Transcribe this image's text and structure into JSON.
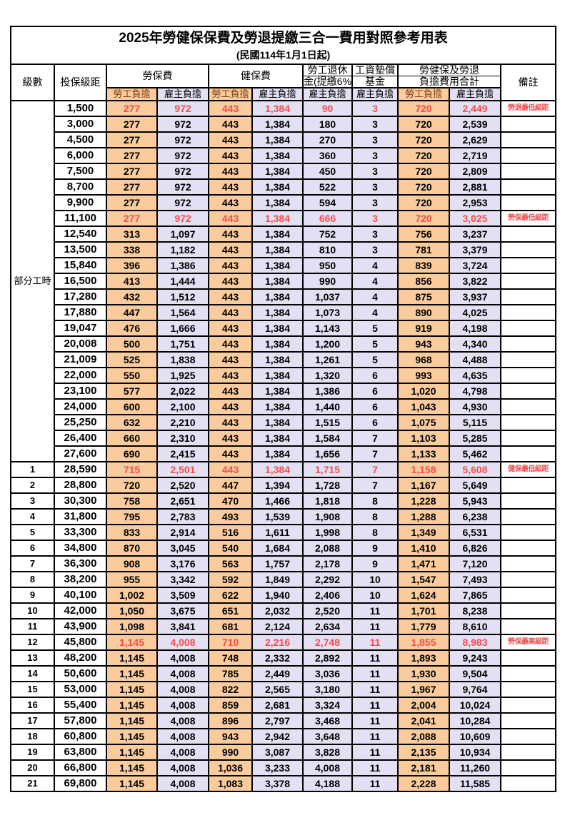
{
  "title": "2025年勞健保保費及勞退提繳三合一費用對照參考用表",
  "subtitle": "(民國114年1月1日起)",
  "columns": {
    "level": "級數",
    "bracket": "投保級距",
    "labor_insurance": "勞保費",
    "health_insurance": "健保費",
    "pension_line1": "勞工退休",
    "pension_line2": "金(提繳6%)",
    "wage_fund_line1": "工資墊償",
    "wage_fund_line2": "基金",
    "total_line1": "勞健保及勞退",
    "total_line2": "負擔費用合計",
    "remarks": "備註",
    "employee_burden": "勞工負擔",
    "employer_burden": "雇主負擔"
  },
  "part_time_label": "部分工時",
  "part_time_rowspan": 23,
  "colors": {
    "employee_column_bg": "#F9CB9D",
    "employer_column_bg": "#E2E0F2",
    "highlight_red": "#F04E4E",
    "employee_header_text": "#843C0C"
  },
  "rows": [
    {
      "level": "",
      "bracket": "1,500",
      "li_emp": "277",
      "li_er": "972",
      "hi_emp": "443",
      "hi_er": "1,384",
      "pension": "90",
      "fund": "3",
      "tot_emp": "720",
      "tot_er": "2,449",
      "note": "勞退最低級距",
      "highlight": true
    },
    {
      "level": "",
      "bracket": "3,000",
      "li_emp": "277",
      "li_er": "972",
      "hi_emp": "443",
      "hi_er": "1,384",
      "pension": "180",
      "fund": "3",
      "tot_emp": "720",
      "tot_er": "2,539",
      "note": "",
      "highlight": false
    },
    {
      "level": "",
      "bracket": "4,500",
      "li_emp": "277",
      "li_er": "972",
      "hi_emp": "443",
      "hi_er": "1,384",
      "pension": "270",
      "fund": "3",
      "tot_emp": "720",
      "tot_er": "2,629",
      "note": "",
      "highlight": false
    },
    {
      "level": "",
      "bracket": "6,000",
      "li_emp": "277",
      "li_er": "972",
      "hi_emp": "443",
      "hi_er": "1,384",
      "pension": "360",
      "fund": "3",
      "tot_emp": "720",
      "tot_er": "2,719",
      "note": "",
      "highlight": false
    },
    {
      "level": "",
      "bracket": "7,500",
      "li_emp": "277",
      "li_er": "972",
      "hi_emp": "443",
      "hi_er": "1,384",
      "pension": "450",
      "fund": "3",
      "tot_emp": "720",
      "tot_er": "2,809",
      "note": "",
      "highlight": false
    },
    {
      "level": "",
      "bracket": "8,700",
      "li_emp": "277",
      "li_er": "972",
      "hi_emp": "443",
      "hi_er": "1,384",
      "pension": "522",
      "fund": "3",
      "tot_emp": "720",
      "tot_er": "2,881",
      "note": "",
      "highlight": false
    },
    {
      "level": "",
      "bracket": "9,900",
      "li_emp": "277",
      "li_er": "972",
      "hi_emp": "443",
      "hi_er": "1,384",
      "pension": "594",
      "fund": "3",
      "tot_emp": "720",
      "tot_er": "2,953",
      "note": "",
      "highlight": false
    },
    {
      "level": "",
      "bracket": "11,100",
      "li_emp": "277",
      "li_er": "972",
      "hi_emp": "443",
      "hi_er": "1,384",
      "pension": "666",
      "fund": "3",
      "tot_emp": "720",
      "tot_er": "3,025",
      "note": "勞保最低級距",
      "highlight": true
    },
    {
      "level": "",
      "bracket": "12,540",
      "li_emp": "313",
      "li_er": "1,097",
      "hi_emp": "443",
      "hi_er": "1,384",
      "pension": "752",
      "fund": "3",
      "tot_emp": "756",
      "tot_er": "3,237",
      "note": "",
      "highlight": false
    },
    {
      "level": "",
      "bracket": "13,500",
      "li_emp": "338",
      "li_er": "1,182",
      "hi_emp": "443",
      "hi_er": "1,384",
      "pension": "810",
      "fund": "3",
      "tot_emp": "781",
      "tot_er": "3,379",
      "note": "",
      "highlight": false
    },
    {
      "level": "",
      "bracket": "15,840",
      "li_emp": "396",
      "li_er": "1,386",
      "hi_emp": "443",
      "hi_er": "1,384",
      "pension": "950",
      "fund": "4",
      "tot_emp": "839",
      "tot_er": "3,724",
      "note": "",
      "highlight": false
    },
    {
      "level": "",
      "bracket": "16,500",
      "li_emp": "413",
      "li_er": "1,444",
      "hi_emp": "443",
      "hi_er": "1,384",
      "pension": "990",
      "fund": "4",
      "tot_emp": "856",
      "tot_er": "3,822",
      "note": "",
      "highlight": false
    },
    {
      "level": "",
      "bracket": "17,280",
      "li_emp": "432",
      "li_er": "1,512",
      "hi_emp": "443",
      "hi_er": "1,384",
      "pension": "1,037",
      "fund": "4",
      "tot_emp": "875",
      "tot_er": "3,937",
      "note": "",
      "highlight": false
    },
    {
      "level": "",
      "bracket": "17,880",
      "li_emp": "447",
      "li_er": "1,564",
      "hi_emp": "443",
      "hi_er": "1,384",
      "pension": "1,073",
      "fund": "4",
      "tot_emp": "890",
      "tot_er": "4,025",
      "note": "",
      "highlight": false
    },
    {
      "level": "",
      "bracket": "19,047",
      "li_emp": "476",
      "li_er": "1,666",
      "hi_emp": "443",
      "hi_er": "1,384",
      "pension": "1,143",
      "fund": "5",
      "tot_emp": "919",
      "tot_er": "4,198",
      "note": "",
      "highlight": false
    },
    {
      "level": "",
      "bracket": "20,008",
      "li_emp": "500",
      "li_er": "1,751",
      "hi_emp": "443",
      "hi_er": "1,384",
      "pension": "1,200",
      "fund": "5",
      "tot_emp": "943",
      "tot_er": "4,340",
      "note": "",
      "highlight": false
    },
    {
      "level": "",
      "bracket": "21,009",
      "li_emp": "525",
      "li_er": "1,838",
      "hi_emp": "443",
      "hi_er": "1,384",
      "pension": "1,261",
      "fund": "5",
      "tot_emp": "968",
      "tot_er": "4,488",
      "note": "",
      "highlight": false
    },
    {
      "level": "",
      "bracket": "22,000",
      "li_emp": "550",
      "li_er": "1,925",
      "hi_emp": "443",
      "hi_er": "1,384",
      "pension": "1,320",
      "fund": "6",
      "tot_emp": "993",
      "tot_er": "4,635",
      "note": "",
      "highlight": false
    },
    {
      "level": "",
      "bracket": "23,100",
      "li_emp": "577",
      "li_er": "2,022",
      "hi_emp": "443",
      "hi_er": "1,384",
      "pension": "1,386",
      "fund": "6",
      "tot_emp": "1,020",
      "tot_er": "4,798",
      "note": "",
      "highlight": false
    },
    {
      "level": "",
      "bracket": "24,000",
      "li_emp": "600",
      "li_er": "2,100",
      "hi_emp": "443",
      "hi_er": "1,384",
      "pension": "1,440",
      "fund": "6",
      "tot_emp": "1,043",
      "tot_er": "4,930",
      "note": "",
      "highlight": false
    },
    {
      "level": "",
      "bracket": "25,250",
      "li_emp": "632",
      "li_er": "2,210",
      "hi_emp": "443",
      "hi_er": "1,384",
      "pension": "1,515",
      "fund": "6",
      "tot_emp": "1,075",
      "tot_er": "5,115",
      "note": "",
      "highlight": false
    },
    {
      "level": "",
      "bracket": "26,400",
      "li_emp": "660",
      "li_er": "2,310",
      "hi_emp": "443",
      "hi_er": "1,384",
      "pension": "1,584",
      "fund": "7",
      "tot_emp": "1,103",
      "tot_er": "5,285",
      "note": "",
      "highlight": false
    },
    {
      "level": "",
      "bracket": "27,600",
      "li_emp": "690",
      "li_er": "2,415",
      "hi_emp": "443",
      "hi_er": "1,384",
      "pension": "1,656",
      "fund": "7",
      "tot_emp": "1,133",
      "tot_er": "5,462",
      "note": "",
      "highlight": false
    },
    {
      "level": "1",
      "bracket": "28,590",
      "li_emp": "715",
      "li_er": "2,501",
      "hi_emp": "443",
      "hi_er": "1,384",
      "pension": "1,715",
      "fund": "7",
      "tot_emp": "1,158",
      "tot_er": "5,608",
      "note": "健保最低級距",
      "highlight": true
    },
    {
      "level": "2",
      "bracket": "28,800",
      "li_emp": "720",
      "li_er": "2,520",
      "hi_emp": "447",
      "hi_er": "1,394",
      "pension": "1,728",
      "fund": "7",
      "tot_emp": "1,167",
      "tot_er": "5,649",
      "note": "",
      "highlight": false
    },
    {
      "level": "3",
      "bracket": "30,300",
      "li_emp": "758",
      "li_er": "2,651",
      "hi_emp": "470",
      "hi_er": "1,466",
      "pension": "1,818",
      "fund": "8",
      "tot_emp": "1,228",
      "tot_er": "5,943",
      "note": "",
      "highlight": false
    },
    {
      "level": "4",
      "bracket": "31,800",
      "li_emp": "795",
      "li_er": "2,783",
      "hi_emp": "493",
      "hi_er": "1,539",
      "pension": "1,908",
      "fund": "8",
      "tot_emp": "1,288",
      "tot_er": "6,238",
      "note": "",
      "highlight": false
    },
    {
      "level": "5",
      "bracket": "33,300",
      "li_emp": "833",
      "li_er": "2,914",
      "hi_emp": "516",
      "hi_er": "1,611",
      "pension": "1,998",
      "fund": "8",
      "tot_emp": "1,349",
      "tot_er": "6,531",
      "note": "",
      "highlight": false
    },
    {
      "level": "6",
      "bracket": "34,800",
      "li_emp": "870",
      "li_er": "3,045",
      "hi_emp": "540",
      "hi_er": "1,684",
      "pension": "2,088",
      "fund": "9",
      "tot_emp": "1,410",
      "tot_er": "6,826",
      "note": "",
      "highlight": false
    },
    {
      "level": "7",
      "bracket": "36,300",
      "li_emp": "908",
      "li_er": "3,176",
      "hi_emp": "563",
      "hi_er": "1,757",
      "pension": "2,178",
      "fund": "9",
      "tot_emp": "1,471",
      "tot_er": "7,120",
      "note": "",
      "highlight": false
    },
    {
      "level": "8",
      "bracket": "38,200",
      "li_emp": "955",
      "li_er": "3,342",
      "hi_emp": "592",
      "hi_er": "1,849",
      "pension": "2,292",
      "fund": "10",
      "tot_emp": "1,547",
      "tot_er": "7,493",
      "note": "",
      "highlight": false
    },
    {
      "level": "9",
      "bracket": "40,100",
      "li_emp": "1,002",
      "li_er": "3,509",
      "hi_emp": "622",
      "hi_er": "1,940",
      "pension": "2,406",
      "fund": "10",
      "tot_emp": "1,624",
      "tot_er": "7,865",
      "note": "",
      "highlight": false
    },
    {
      "level": "10",
      "bracket": "42,000",
      "li_emp": "1,050",
      "li_er": "3,675",
      "hi_emp": "651",
      "hi_er": "2,032",
      "pension": "2,520",
      "fund": "11",
      "tot_emp": "1,701",
      "tot_er": "8,238",
      "note": "",
      "highlight": false
    },
    {
      "level": "11",
      "bracket": "43,900",
      "li_emp": "1,098",
      "li_er": "3,841",
      "hi_emp": "681",
      "hi_er": "2,124",
      "pension": "2,634",
      "fund": "11",
      "tot_emp": "1,779",
      "tot_er": "8,610",
      "note": "",
      "highlight": false
    },
    {
      "level": "12",
      "bracket": "45,800",
      "li_emp": "1,145",
      "li_er": "4,008",
      "hi_emp": "710",
      "hi_er": "2,216",
      "pension": "2,748",
      "fund": "11",
      "tot_emp": "1,855",
      "tot_er": "8,983",
      "note": "勞保最高級距",
      "highlight": true
    },
    {
      "level": "13",
      "bracket": "48,200",
      "li_emp": "1,145",
      "li_er": "4,008",
      "hi_emp": "748",
      "hi_er": "2,332",
      "pension": "2,892",
      "fund": "11",
      "tot_emp": "1,893",
      "tot_er": "9,243",
      "note": "",
      "highlight": false
    },
    {
      "level": "14",
      "bracket": "50,600",
      "li_emp": "1,145",
      "li_er": "4,008",
      "hi_emp": "785",
      "hi_er": "2,449",
      "pension": "3,036",
      "fund": "11",
      "tot_emp": "1,930",
      "tot_er": "9,504",
      "note": "",
      "highlight": false
    },
    {
      "level": "15",
      "bracket": "53,000",
      "li_emp": "1,145",
      "li_er": "4,008",
      "hi_emp": "822",
      "hi_er": "2,565",
      "pension": "3,180",
      "fund": "11",
      "tot_emp": "1,967",
      "tot_er": "9,764",
      "note": "",
      "highlight": false
    },
    {
      "level": "16",
      "bracket": "55,400",
      "li_emp": "1,145",
      "li_er": "4,008",
      "hi_emp": "859",
      "hi_er": "2,681",
      "pension": "3,324",
      "fund": "11",
      "tot_emp": "2,004",
      "tot_er": "10,024",
      "note": "",
      "highlight": false
    },
    {
      "level": "17",
      "bracket": "57,800",
      "li_emp": "1,145",
      "li_er": "4,008",
      "hi_emp": "896",
      "hi_er": "2,797",
      "pension": "3,468",
      "fund": "11",
      "tot_emp": "2,041",
      "tot_er": "10,284",
      "note": "",
      "highlight": false
    },
    {
      "level": "18",
      "bracket": "60,800",
      "li_emp": "1,145",
      "li_er": "4,008",
      "hi_emp": "943",
      "hi_er": "2,942",
      "pension": "3,648",
      "fund": "11",
      "tot_emp": "2,088",
      "tot_er": "10,609",
      "note": "",
      "highlight": false
    },
    {
      "level": "19",
      "bracket": "63,800",
      "li_emp": "1,145",
      "li_er": "4,008",
      "hi_emp": "990",
      "hi_er": "3,087",
      "pension": "3,828",
      "fund": "11",
      "tot_emp": "2,135",
      "tot_er": "10,934",
      "note": "",
      "highlight": false
    },
    {
      "level": "20",
      "bracket": "66,800",
      "li_emp": "1,145",
      "li_er": "4,008",
      "hi_emp": "1,036",
      "hi_er": "3,233",
      "pension": "4,008",
      "fund": "11",
      "tot_emp": "2,181",
      "tot_er": "11,260",
      "note": "",
      "highlight": false
    },
    {
      "level": "21",
      "bracket": "69,800",
      "li_emp": "1,145",
      "li_er": "4,008",
      "hi_emp": "1,083",
      "hi_er": "3,378",
      "pension": "4,188",
      "fund": "11",
      "tot_emp": "2,228",
      "tot_er": "11,585",
      "note": "",
      "highlight": false
    }
  ]
}
